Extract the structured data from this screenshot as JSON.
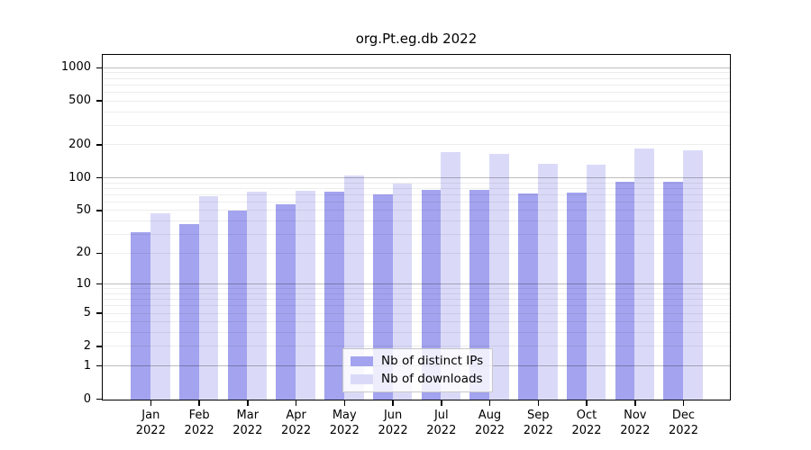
{
  "chart_data": {
    "type": "bar",
    "title": "org.Pt.eg.db 2022",
    "year": "2022",
    "categories": [
      "Jan",
      "Feb",
      "Mar",
      "Apr",
      "May",
      "Jun",
      "Jul",
      "Aug",
      "Sep",
      "Oct",
      "Nov",
      "Dec"
    ],
    "series": [
      {
        "name": "Nb of distinct IPs",
        "color": "#a3a3ef",
        "values": [
          32,
          38,
          50,
          58,
          75,
          71,
          78,
          78,
          73,
          74,
          93,
          92
        ]
      },
      {
        "name": "Nb of downloads",
        "color": "#dadaf8",
        "values": [
          48,
          69,
          75,
          77,
          106,
          90,
          172,
          166,
          135,
          134,
          188,
          180
        ]
      }
    ],
    "y_axis": {
      "scale": "log1p",
      "ticks": [
        0,
        1,
        2,
        5,
        10,
        20,
        50,
        100,
        200,
        500,
        1000
      ],
      "max": 1295
    },
    "gridlines": {
      "major": [
        1,
        10,
        100,
        1000
      ],
      "minor": [
        2,
        3,
        4,
        5,
        6,
        7,
        8,
        9,
        20,
        30,
        40,
        50,
        60,
        70,
        80,
        90,
        200,
        300,
        400,
        500,
        600,
        700,
        800,
        900
      ]
    },
    "legend_position": "bottom-center",
    "grid": "on"
  }
}
